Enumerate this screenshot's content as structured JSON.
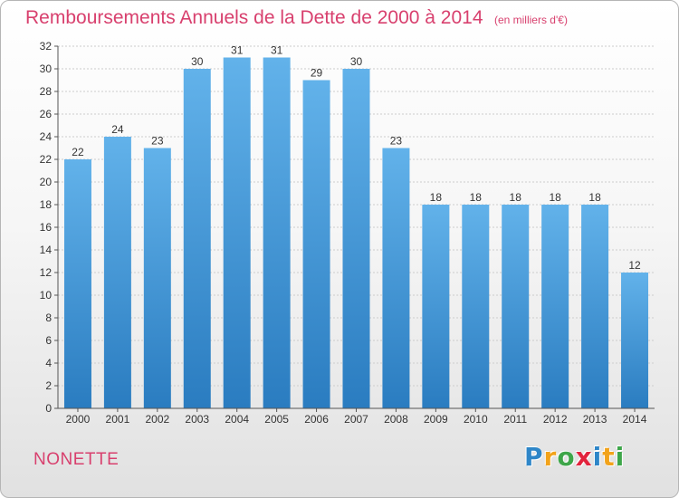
{
  "title": "Remboursements Annuels de la Dette de 2000 à 2014",
  "subtitle": "(en milliers d'€)",
  "commune": "NONETTE",
  "logo": {
    "text": "Proxiti",
    "letters": [
      {
        "ch": "P",
        "color": "#2e86c8"
      },
      {
        "ch": "r",
        "color": "#f2a31b"
      },
      {
        "ch": "o",
        "color": "#3ea64a"
      },
      {
        "ch": "x",
        "color": "#e2233d"
      },
      {
        "ch": "i",
        "color": "#2e86c8"
      },
      {
        "ch": "t",
        "color": "#f2a31b"
      },
      {
        "ch": "i",
        "color": "#3ea64a"
      }
    ]
  },
  "colors": {
    "title": "#d8406e",
    "bar_top": "#62b2ea",
    "bar_bottom": "#2a7cc0",
    "grid": "#cccccc"
  },
  "chart_data": {
    "type": "bar",
    "categories": [
      "2000",
      "2001",
      "2002",
      "2003",
      "2004",
      "2005",
      "2006",
      "2007",
      "2008",
      "2009",
      "2010",
      "2011",
      "2012",
      "2013",
      "2014"
    ],
    "values": [
      22,
      24,
      23,
      30,
      31,
      31,
      29,
      30,
      23,
      18,
      18,
      18,
      18,
      18,
      12
    ],
    "ylim": [
      0,
      32
    ],
    "yticks": [
      0,
      2,
      4,
      6,
      8,
      10,
      12,
      14,
      16,
      18,
      20,
      22,
      24,
      26,
      28,
      30,
      32
    ],
    "data_labels": true,
    "grid": "horizontal"
  }
}
